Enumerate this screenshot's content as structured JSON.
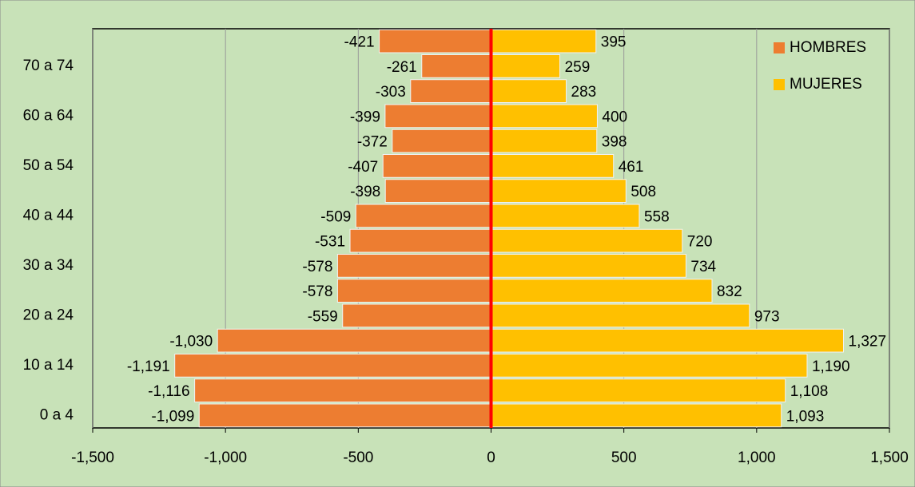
{
  "chart_data": {
    "type": "pyramid",
    "categories": [
      "0 a 4",
      null,
      "10 a 14",
      null,
      "20 a 24",
      null,
      "30 a 34",
      null,
      "40 a 44",
      null,
      "50 a 54",
      null,
      "60 a 64",
      null,
      "70 a 74",
      null
    ],
    "series": [
      {
        "name": "HOMBRES",
        "color": "#ed7d31",
        "values": [
          -1099,
          -1116,
          -1191,
          -1030,
          -559,
          -578,
          -578,
          -531,
          -509,
          -398,
          -407,
          -372,
          -399,
          -303,
          -261,
          -421
        ],
        "value_labels": [
          "-1,099",
          "-1,116",
          "-1,191",
          "-1,030",
          "-559",
          "-578",
          "-578",
          "-531",
          "-509",
          "-398",
          "-407",
          "-372",
          "-399",
          "-303",
          "-261",
          "-421"
        ]
      },
      {
        "name": "MUJERES",
        "color": "#ffc000",
        "values": [
          1093,
          1108,
          1190,
          1327,
          973,
          832,
          734,
          720,
          558,
          508,
          461,
          398,
          400,
          283,
          259,
          395
        ],
        "value_labels": [
          "1,093",
          "1,108",
          "1,190",
          "1,327",
          "973",
          "832",
          "734",
          "720",
          "558",
          "508",
          "461",
          "398",
          "400",
          "283",
          "259",
          "395"
        ]
      }
    ],
    "xlim": [
      -1500,
      1500
    ],
    "xticks": [
      {
        "value": -1500,
        "label": "-1,500"
      },
      {
        "value": -1000,
        "label": "-1,000"
      },
      -500,
      0,
      500,
      {
        "value": 1000,
        "label": "1,000"
      },
      {
        "value": 1500,
        "label": "1,500"
      }
    ],
    "grid": true,
    "legend": "top-right"
  }
}
